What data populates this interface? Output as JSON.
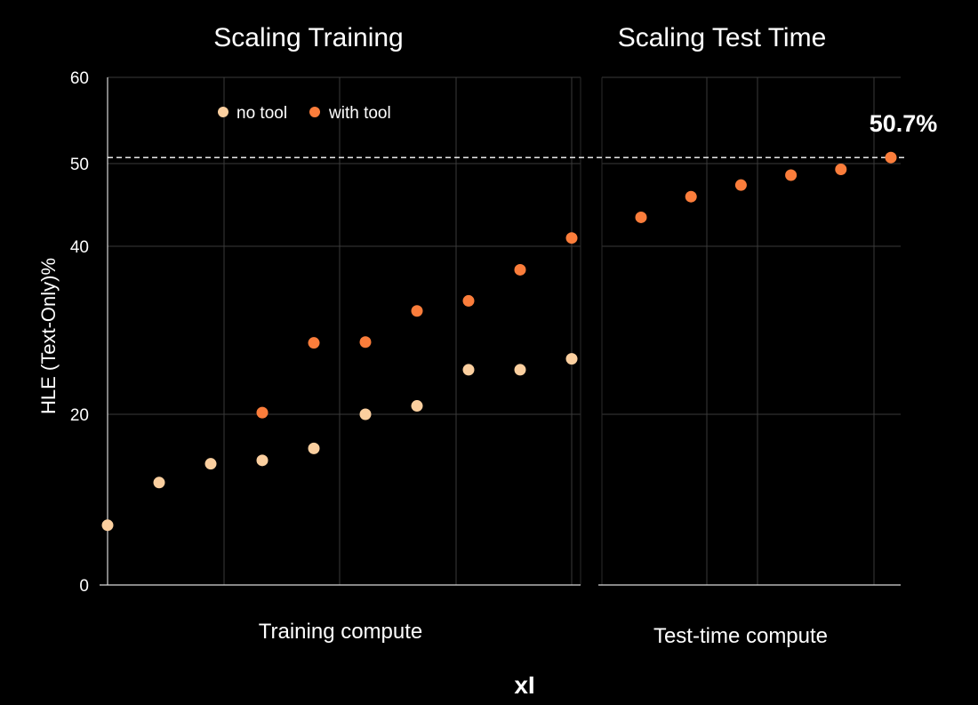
{
  "chart_data": {
    "type": "scatter",
    "ylabel": "HLE (Text-Only)%",
    "yticks": [
      0,
      20,
      40,
      50,
      60
    ],
    "ylim": [
      0,
      60
    ],
    "reference_line": {
      "y": 50.7,
      "style": "dashed",
      "color": "#ffffff"
    },
    "legend": [
      {
        "name": "no tool",
        "color": "#fbcf9f"
      },
      {
        "name": "with tool",
        "color": "#fb7d3b"
      }
    ],
    "panels": [
      {
        "title": "Scaling Training",
        "xlabel": "Training compute",
        "series": [
          {
            "name": "no tool",
            "color": "#fbcf9f",
            "x": [
              1,
              2,
              3,
              4,
              5,
              6,
              7,
              8,
              9,
              10
            ],
            "y": [
              7.0,
              12.0,
              14.2,
              14.6,
              16.0,
              20.0,
              21.0,
              25.3,
              25.3,
              26.6
            ]
          },
          {
            "name": "with tool",
            "color": "#fb7d3b",
            "x": [
              4,
              5,
              6,
              7,
              8,
              9,
              10
            ],
            "y": [
              20.2,
              28.5,
              28.6,
              32.3,
              33.5,
              37.2,
              41.0
            ]
          }
        ]
      },
      {
        "title": "Scaling Test Time",
        "xlabel": "Test-time compute",
        "series": [
          {
            "name": "with tool",
            "color": "#fb7d3b",
            "x": [
              1,
              2,
              3,
              4,
              5,
              6
            ],
            "y": [
              43.5,
              46.0,
              47.4,
              48.6,
              49.3,
              50.7
            ]
          }
        ]
      }
    ],
    "annotation": {
      "text": "50.7%"
    }
  },
  "logo": {
    "text": "xI"
  }
}
